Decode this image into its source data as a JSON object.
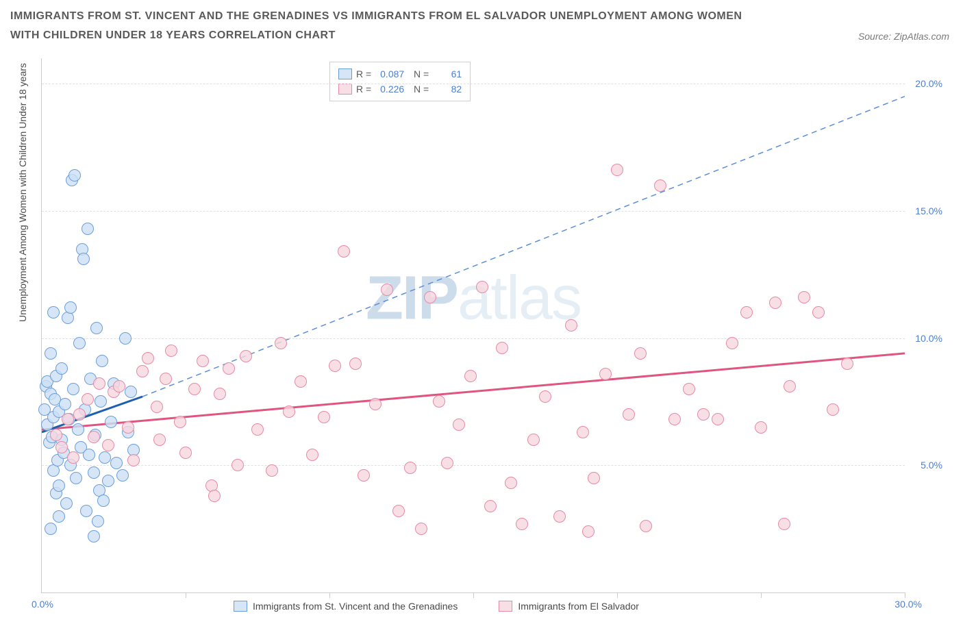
{
  "title": "IMMIGRANTS FROM ST. VINCENT AND THE GRENADINES VS IMMIGRANTS FROM EL SALVADOR UNEMPLOYMENT AMONG WOMEN WITH CHILDREN UNDER 18 YEARS CORRELATION CHART",
  "source": "Source: ZipAtlas.com",
  "y_axis_title": "Unemployment Among Women with Children Under 18 years",
  "watermark_a": "ZIP",
  "watermark_b": "atlas",
  "chart": {
    "type": "scatter",
    "xlim": [
      0,
      30
    ],
    "ylim": [
      0,
      21
    ],
    "x_ticks": [
      0,
      5,
      10,
      15,
      20,
      25,
      30
    ],
    "y_grid": [
      5,
      10,
      15,
      20
    ],
    "y_labels": [
      "5.0%",
      "10.0%",
      "15.0%",
      "20.0%"
    ],
    "x_origin_label": "0.0%",
    "x_end_label": "30.0%",
    "background_color": "#ffffff",
    "grid_color": "#e0e0e0",
    "series": [
      {
        "name": "Immigrants from St. Vincent and the Grenadines",
        "fill": "#cde0f5cc",
        "stroke": "#6a9edb",
        "line_color": "#1f5fb0",
        "dashed_line_color": "#5a8edb",
        "R": "0.087",
        "N": "61",
        "trend_solid": {
          "x1": 0,
          "y1": 6.3,
          "x2": 3.5,
          "y2": 7.7
        },
        "trend_dashed": {
          "x1": 3.5,
          "y1": 7.7,
          "x2": 30,
          "y2": 19.5
        },
        "points": [
          [
            0.1,
            7.2
          ],
          [
            0.15,
            8.1
          ],
          [
            0.2,
            6.6
          ],
          [
            0.2,
            8.3
          ],
          [
            0.25,
            5.9
          ],
          [
            0.3,
            7.8
          ],
          [
            0.3,
            9.4
          ],
          [
            0.35,
            6.1
          ],
          [
            0.4,
            4.8
          ],
          [
            0.4,
            6.9
          ],
          [
            0.45,
            7.6
          ],
          [
            0.5,
            8.5
          ],
          [
            0.5,
            3.9
          ],
          [
            0.55,
            5.2
          ],
          [
            0.6,
            7.1
          ],
          [
            0.6,
            4.2
          ],
          [
            0.7,
            6.0
          ],
          [
            0.7,
            8.8
          ],
          [
            0.75,
            5.5
          ],
          [
            0.8,
            7.4
          ],
          [
            0.85,
            3.5
          ],
          [
            0.9,
            10.8
          ],
          [
            0.95,
            6.8
          ],
          [
            1.0,
            5.0
          ],
          [
            1.05,
            16.2
          ],
          [
            1.1,
            8.0
          ],
          [
            1.15,
            16.4
          ],
          [
            1.2,
            4.5
          ],
          [
            1.25,
            6.4
          ],
          [
            1.3,
            9.8
          ],
          [
            1.35,
            5.7
          ],
          [
            1.4,
            13.5
          ],
          [
            1.45,
            13.1
          ],
          [
            1.5,
            7.2
          ],
          [
            1.55,
            3.2
          ],
          [
            1.6,
            14.3
          ],
          [
            1.65,
            5.4
          ],
          [
            1.7,
            8.4
          ],
          [
            1.8,
            4.7
          ],
          [
            1.85,
            6.2
          ],
          [
            1.9,
            10.4
          ],
          [
            1.95,
            2.8
          ],
          [
            2.0,
            4.0
          ],
          [
            2.05,
            7.5
          ],
          [
            2.1,
            9.1
          ],
          [
            2.15,
            3.6
          ],
          [
            2.2,
            5.3
          ],
          [
            2.3,
            4.4
          ],
          [
            2.4,
            6.7
          ],
          [
            2.5,
            8.2
          ],
          [
            2.6,
            5.1
          ],
          [
            2.8,
            4.6
          ],
          [
            2.9,
            10.0
          ],
          [
            3.0,
            6.3
          ],
          [
            3.1,
            7.9
          ],
          [
            3.2,
            5.6
          ],
          [
            0.3,
            2.5
          ],
          [
            0.6,
            3.0
          ],
          [
            1.8,
            2.2
          ],
          [
            1.0,
            11.2
          ],
          [
            0.4,
            11.0
          ]
        ]
      },
      {
        "name": "Immigrants from El Salvador",
        "fill": "#f6d6dfcc",
        "stroke": "#e68aa5",
        "line_color": "#e05580",
        "R": "0.226",
        "N": "82",
        "trend_solid": {
          "x1": 0,
          "y1": 6.4,
          "x2": 30,
          "y2": 9.4
        },
        "points": [
          [
            0.5,
            6.2
          ],
          [
            0.7,
            5.7
          ],
          [
            0.9,
            6.8
          ],
          [
            1.1,
            5.3
          ],
          [
            1.3,
            7.0
          ],
          [
            1.6,
            7.6
          ],
          [
            1.8,
            6.1
          ],
          [
            2.0,
            8.2
          ],
          [
            2.3,
            5.8
          ],
          [
            2.5,
            7.9
          ],
          [
            2.7,
            8.1
          ],
          [
            3.0,
            6.5
          ],
          [
            3.2,
            5.2
          ],
          [
            3.5,
            8.7
          ],
          [
            3.7,
            9.2
          ],
          [
            4.0,
            7.3
          ],
          [
            4.3,
            8.4
          ],
          [
            4.5,
            9.5
          ],
          [
            4.8,
            6.7
          ],
          [
            5.0,
            5.5
          ],
          [
            5.3,
            8.0
          ],
          [
            5.6,
            9.1
          ],
          [
            5.9,
            4.2
          ],
          [
            6.2,
            7.8
          ],
          [
            6.5,
            8.8
          ],
          [
            6.8,
            5.0
          ],
          [
            7.1,
            9.3
          ],
          [
            7.5,
            6.4
          ],
          [
            8.0,
            4.8
          ],
          [
            8.3,
            9.8
          ],
          [
            8.6,
            7.1
          ],
          [
            9.0,
            8.3
          ],
          [
            9.4,
            5.4
          ],
          [
            9.8,
            6.9
          ],
          [
            10.2,
            8.9
          ],
          [
            10.5,
            13.4
          ],
          [
            10.9,
            9.0
          ],
          [
            11.2,
            4.6
          ],
          [
            11.6,
            7.4
          ],
          [
            12.0,
            11.9
          ],
          [
            12.4,
            3.2
          ],
          [
            12.8,
            4.9
          ],
          [
            13.2,
            2.5
          ],
          [
            13.5,
            11.6
          ],
          [
            13.8,
            7.5
          ],
          [
            14.1,
            5.1
          ],
          [
            14.5,
            6.6
          ],
          [
            14.9,
            8.5
          ],
          [
            15.3,
            12.0
          ],
          [
            15.6,
            3.4
          ],
          [
            16.0,
            9.6
          ],
          [
            16.3,
            4.3
          ],
          [
            16.7,
            2.7
          ],
          [
            17.1,
            6.0
          ],
          [
            17.5,
            7.7
          ],
          [
            18.0,
            3.0
          ],
          [
            18.4,
            10.5
          ],
          [
            18.8,
            6.3
          ],
          [
            19.2,
            4.5
          ],
          [
            19.6,
            8.6
          ],
          [
            20.0,
            16.6
          ],
          [
            20.4,
            7.0
          ],
          [
            20.8,
            9.4
          ],
          [
            21.0,
            2.6
          ],
          [
            21.5,
            16.0
          ],
          [
            22.0,
            6.8
          ],
          [
            22.5,
            8.0
          ],
          [
            23.0,
            7.0
          ],
          [
            23.5,
            6.8
          ],
          [
            24.0,
            9.8
          ],
          [
            24.5,
            11.0
          ],
          [
            25.0,
            6.5
          ],
          [
            25.5,
            11.4
          ],
          [
            26.0,
            8.1
          ],
          [
            26.5,
            11.6
          ],
          [
            27.0,
            11.0
          ],
          [
            27.5,
            7.2
          ],
          [
            28.0,
            9.0
          ],
          [
            25.8,
            2.7
          ],
          [
            19.0,
            2.4
          ],
          [
            4.1,
            6.0
          ],
          [
            6.0,
            3.8
          ]
        ]
      }
    ]
  },
  "bottom_legend": [
    "Immigrants from St. Vincent and the Grenadines",
    "Immigrants from El Salvador"
  ]
}
